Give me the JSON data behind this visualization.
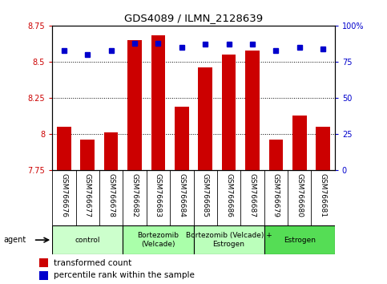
{
  "title": "GDS4089 / ILMN_2128639",
  "samples": [
    "GSM766676",
    "GSM766677",
    "GSM766678",
    "GSM766682",
    "GSM766683",
    "GSM766684",
    "GSM766685",
    "GSM766686",
    "GSM766687",
    "GSM766679",
    "GSM766680",
    "GSM766681"
  ],
  "bar_values": [
    8.05,
    7.96,
    8.01,
    8.65,
    8.68,
    8.19,
    8.46,
    8.55,
    8.58,
    7.96,
    8.13,
    8.05
  ],
  "dot_values": [
    83,
    80,
    83,
    88,
    88,
    85,
    87,
    87,
    87,
    83,
    85,
    84
  ],
  "bar_bottom": 7.75,
  "ylim_left": [
    7.75,
    8.75
  ],
  "ylim_right": [
    0,
    100
  ],
  "yticks_left": [
    7.75,
    8.0,
    8.25,
    8.5,
    8.75
  ],
  "ytick_labels_left": [
    "7.75",
    "8",
    "8.25",
    "8.5",
    "8.75"
  ],
  "yticks_right": [
    0,
    25,
    50,
    75,
    100
  ],
  "ytick_labels_right": [
    "0",
    "25",
    "50",
    "75",
    "100%"
  ],
  "bar_color": "#cc0000",
  "dot_color": "#0000cc",
  "groups": [
    {
      "label": "control",
      "start": 0,
      "end": 3,
      "color": "#ccffcc"
    },
    {
      "label": "Bortezomib\n(Velcade)",
      "start": 3,
      "end": 6,
      "color": "#aaffaa"
    },
    {
      "label": "Bortezomib (Velcade) +\nEstrogen",
      "start": 6,
      "end": 9,
      "color": "#bbffbb"
    },
    {
      "label": "Estrogen",
      "start": 9,
      "end": 12,
      "color": "#55dd55"
    }
  ],
  "legend_items": [
    {
      "label": "transformed count",
      "color": "#cc0000"
    },
    {
      "label": "percentile rank within the sample",
      "color": "#0000cc"
    }
  ],
  "agent_label": "agent",
  "background_color": "#ffffff",
  "xtick_bg_color": "#d0d0d0",
  "xtick_border_color": "#888888"
}
